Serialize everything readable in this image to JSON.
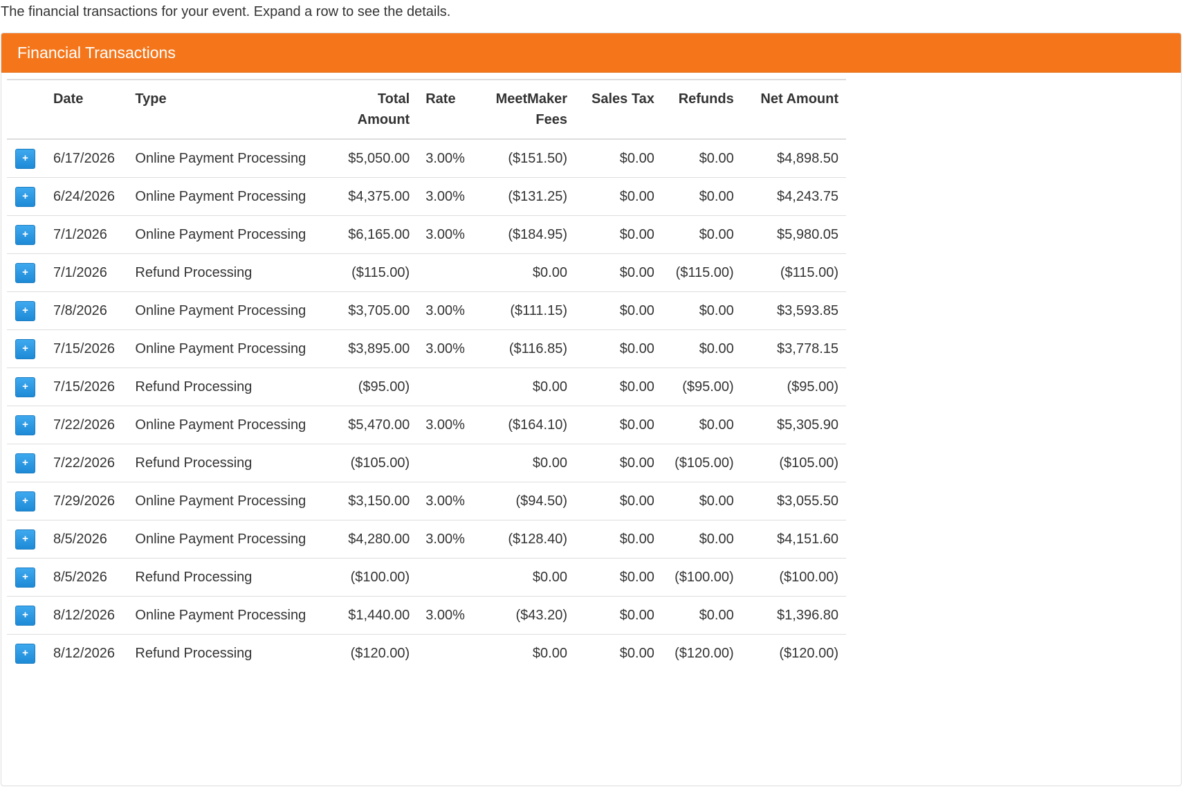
{
  "intro_text": "The financial transactions for your event. Expand a row to see the details.",
  "panel": {
    "title": "Financial Transactions",
    "accent_color": "#f5761a"
  },
  "expand_icon": "plus-icon",
  "expand_symbol": "+",
  "columns": {
    "date": "Date",
    "type": "Type",
    "total_amount": "Total Amount",
    "rate": "Rate",
    "meetmaker_fees": "MeetMaker Fees",
    "sales_tax": "Sales Tax",
    "refunds": "Refunds",
    "net_amount": "Net Amount"
  },
  "rows": [
    {
      "date": "6/17/2026",
      "type": "Online Payment Processing",
      "total": "$5,050.00",
      "rate": "3.00%",
      "fees": "($151.50)",
      "tax": "$0.00",
      "refunds": "$0.00",
      "net": "$4,898.50"
    },
    {
      "date": "6/24/2026",
      "type": "Online Payment Processing",
      "total": "$4,375.00",
      "rate": "3.00%",
      "fees": "($131.25)",
      "tax": "$0.00",
      "refunds": "$0.00",
      "net": "$4,243.75"
    },
    {
      "date": "7/1/2026",
      "type": "Online Payment Processing",
      "total": "$6,165.00",
      "rate": "3.00%",
      "fees": "($184.95)",
      "tax": "$0.00",
      "refunds": "$0.00",
      "net": "$5,980.05"
    },
    {
      "date": "7/1/2026",
      "type": "Refund Processing",
      "total": "($115.00)",
      "rate": "",
      "fees": "$0.00",
      "tax": "$0.00",
      "refunds": "($115.00)",
      "net": "($115.00)"
    },
    {
      "date": "7/8/2026",
      "type": "Online Payment Processing",
      "total": "$3,705.00",
      "rate": "3.00%",
      "fees": "($111.15)",
      "tax": "$0.00",
      "refunds": "$0.00",
      "net": "$3,593.85"
    },
    {
      "date": "7/15/2026",
      "type": "Online Payment Processing",
      "total": "$3,895.00",
      "rate": "3.00%",
      "fees": "($116.85)",
      "tax": "$0.00",
      "refunds": "$0.00",
      "net": "$3,778.15"
    },
    {
      "date": "7/15/2026",
      "type": "Refund Processing",
      "total": "($95.00)",
      "rate": "",
      "fees": "$0.00",
      "tax": "$0.00",
      "refunds": "($95.00)",
      "net": "($95.00)"
    },
    {
      "date": "7/22/2026",
      "type": "Online Payment Processing",
      "total": "$5,470.00",
      "rate": "3.00%",
      "fees": "($164.10)",
      "tax": "$0.00",
      "refunds": "$0.00",
      "net": "$5,305.90"
    },
    {
      "date": "7/22/2026",
      "type": "Refund Processing",
      "total": "($105.00)",
      "rate": "",
      "fees": "$0.00",
      "tax": "$0.00",
      "refunds": "($105.00)",
      "net": "($105.00)"
    },
    {
      "date": "7/29/2026",
      "type": "Online Payment Processing",
      "total": "$3,150.00",
      "rate": "3.00%",
      "fees": "($94.50)",
      "tax": "$0.00",
      "refunds": "$0.00",
      "net": "$3,055.50"
    },
    {
      "date": "8/5/2026",
      "type": "Online Payment Processing",
      "total": "$4,280.00",
      "rate": "3.00%",
      "fees": "($128.40)",
      "tax": "$0.00",
      "refunds": "$0.00",
      "net": "$4,151.60"
    },
    {
      "date": "8/5/2026",
      "type": "Refund Processing",
      "total": "($100.00)",
      "rate": "",
      "fees": "$0.00",
      "tax": "$0.00",
      "refunds": "($100.00)",
      "net": "($100.00)"
    },
    {
      "date": "8/12/2026",
      "type": "Online Payment Processing",
      "total": "$1,440.00",
      "rate": "3.00%",
      "fees": "($43.20)",
      "tax": "$0.00",
      "refunds": "$0.00",
      "net": "$1,396.80"
    },
    {
      "date": "8/12/2026",
      "type": "Refund Processing",
      "total": "($120.00)",
      "rate": "",
      "fees": "$0.00",
      "tax": "$0.00",
      "refunds": "($120.00)",
      "net": "($120.00)"
    }
  ]
}
